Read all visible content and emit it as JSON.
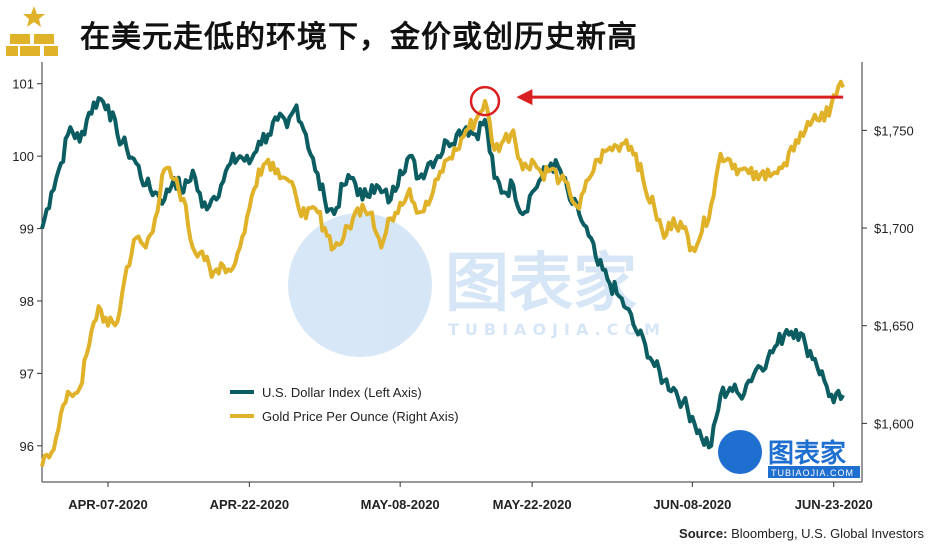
{
  "header": {
    "title": "在美元走低的环境下，金价或创历史新高"
  },
  "source": {
    "label": "Source:",
    "text": "Bloomberg, U.S. Global Investors"
  },
  "watermark": {
    "text": "图表家",
    "sub": "TUBIAOJIA.COM"
  },
  "colors": {
    "dxy": "#0c5d62",
    "gold": "#e0b22a",
    "arrow": "#d91f1f",
    "axis": "#333333"
  },
  "chart_data": {
    "type": "line",
    "title": "在美元走低的环境下，金价或创历史新高",
    "x": {
      "type": "date",
      "start": "2020-03-31",
      "end": "2020-06-26",
      "tick_labels": [
        "APR-07-2020",
        "APR-22-2020",
        "MAY-08-2020",
        "MAY-22-2020",
        "JUN-08-2020",
        "JUN-23-2020"
      ]
    },
    "y_left": {
      "range": [
        95.5,
        101.3
      ],
      "ticks": [
        96,
        97,
        98,
        99,
        100,
        101
      ],
      "tick_labels": [
        "96",
        "97",
        "98",
        "99",
        "100",
        "101"
      ]
    },
    "y_right": {
      "range": [
        1570,
        1785
      ],
      "ticks": [
        1600,
        1650,
        1700,
        1750
      ],
      "tick_labels": [
        "$1,600",
        "$1,650",
        "$1,700",
        "$1,750"
      ]
    },
    "grid": false,
    "legend_position": "bottom-left",
    "series": [
      {
        "name": "U.S. Dollar Index (Left Axis)",
        "axis": "left",
        "color": "#0c5d62",
        "points": [
          [
            "2020-03-31",
            99.0
          ],
          [
            "2020-04-01",
            99.5
          ],
          [
            "2020-04-02",
            99.9
          ],
          [
            "2020-04-03",
            100.4
          ],
          [
            "2020-04-04",
            100.2
          ],
          [
            "2020-04-05",
            100.6
          ],
          [
            "2020-04-06",
            100.8
          ],
          [
            "2020-04-07",
            100.7
          ],
          [
            "2020-04-08",
            100.3
          ],
          [
            "2020-04-09",
            100.1
          ],
          [
            "2020-04-10",
            99.9
          ],
          [
            "2020-04-11",
            99.6
          ],
          [
            "2020-04-12",
            99.5
          ],
          [
            "2020-04-13",
            99.4
          ],
          [
            "2020-04-14",
            99.7
          ],
          [
            "2020-04-15",
            99.5
          ],
          [
            "2020-04-16",
            99.8
          ],
          [
            "2020-04-17",
            99.3
          ],
          [
            "2020-04-18",
            99.4
          ],
          [
            "2020-04-19",
            99.6
          ],
          [
            "2020-04-20",
            99.9
          ],
          [
            "2020-04-21",
            100.0
          ],
          [
            "2020-04-22",
            99.9
          ],
          [
            "2020-04-23",
            100.2
          ],
          [
            "2020-04-24",
            100.3
          ],
          [
            "2020-04-25",
            100.5
          ],
          [
            "2020-04-26",
            100.4
          ],
          [
            "2020-04-27",
            100.7
          ],
          [
            "2020-04-28",
            100.3
          ],
          [
            "2020-04-29",
            99.8
          ],
          [
            "2020-04-30",
            99.4
          ],
          [
            "2020-05-01",
            99.2
          ],
          [
            "2020-05-02",
            99.6
          ],
          [
            "2020-05-03",
            99.7
          ],
          [
            "2020-05-04",
            99.4
          ],
          [
            "2020-05-05",
            99.6
          ],
          [
            "2020-05-06",
            99.5
          ],
          [
            "2020-05-07",
            99.4
          ],
          [
            "2020-05-08",
            99.8
          ],
          [
            "2020-05-09",
            100.0
          ],
          [
            "2020-05-10",
            99.7
          ],
          [
            "2020-05-11",
            99.9
          ],
          [
            "2020-05-12",
            100.0
          ],
          [
            "2020-05-13",
            100.2
          ],
          [
            "2020-05-14",
            100.3
          ],
          [
            "2020-05-15",
            100.4
          ],
          [
            "2020-05-16",
            100.3
          ],
          [
            "2020-05-17",
            100.5
          ],
          [
            "2020-05-18",
            99.7
          ],
          [
            "2020-05-19",
            99.5
          ],
          [
            "2020-05-20",
            99.6
          ],
          [
            "2020-05-21",
            99.2
          ],
          [
            "2020-05-22",
            99.5
          ],
          [
            "2020-05-23",
            99.7
          ],
          [
            "2020-05-24",
            99.9
          ],
          [
            "2020-05-25",
            99.8
          ],
          [
            "2020-05-26",
            99.4
          ],
          [
            "2020-05-27",
            99.2
          ],
          [
            "2020-05-28",
            98.9
          ],
          [
            "2020-05-29",
            98.5
          ],
          [
            "2020-05-30",
            98.3
          ],
          [
            "2020-05-31",
            98.1
          ],
          [
            "2020-06-01",
            97.9
          ],
          [
            "2020-06-02",
            97.6
          ],
          [
            "2020-06-03",
            97.4
          ],
          [
            "2020-06-04",
            97.1
          ],
          [
            "2020-06-05",
            96.9
          ],
          [
            "2020-06-06",
            96.8
          ],
          [
            "2020-06-07",
            96.6
          ],
          [
            "2020-06-08",
            96.4
          ],
          [
            "2020-06-09",
            96.1
          ],
          [
            "2020-06-10",
            96.0
          ],
          [
            "2020-06-11",
            96.7
          ],
          [
            "2020-06-12",
            96.8
          ],
          [
            "2020-06-13",
            96.7
          ],
          [
            "2020-06-14",
            96.9
          ],
          [
            "2020-06-15",
            97.1
          ],
          [
            "2020-06-16",
            97.2
          ],
          [
            "2020-06-17",
            97.4
          ],
          [
            "2020-06-18",
            97.6
          ],
          [
            "2020-06-19",
            97.6
          ],
          [
            "2020-06-20",
            97.4
          ],
          [
            "2020-06-21",
            97.2
          ],
          [
            "2020-06-22",
            96.9
          ],
          [
            "2020-06-23",
            96.6
          ],
          [
            "2020-06-24",
            96.7
          ]
        ]
      },
      {
        "name": "Gold Price Per Ounce (Right Axis)",
        "axis": "right",
        "color": "#e0b22a",
        "points": [
          [
            "2020-03-31",
            1578
          ],
          [
            "2020-04-01",
            1585
          ],
          [
            "2020-04-02",
            1605
          ],
          [
            "2020-04-03",
            1615
          ],
          [
            "2020-04-04",
            1618
          ],
          [
            "2020-04-05",
            1640
          ],
          [
            "2020-04-06",
            1660
          ],
          [
            "2020-04-07",
            1650
          ],
          [
            "2020-04-08",
            1652
          ],
          [
            "2020-04-09",
            1680
          ],
          [
            "2020-04-10",
            1695
          ],
          [
            "2020-04-11",
            1690
          ],
          [
            "2020-04-12",
            1705
          ],
          [
            "2020-04-13",
            1730
          ],
          [
            "2020-04-14",
            1725
          ],
          [
            "2020-04-15",
            1715
          ],
          [
            "2020-04-16",
            1690
          ],
          [
            "2020-04-17",
            1688
          ],
          [
            "2020-04-18",
            1675
          ],
          [
            "2020-04-19",
            1682
          ],
          [
            "2020-04-20",
            1678
          ],
          [
            "2020-04-21",
            1690
          ],
          [
            "2020-04-22",
            1710
          ],
          [
            "2020-04-23",
            1730
          ],
          [
            "2020-04-24",
            1735
          ],
          [
            "2020-04-25",
            1730
          ],
          [
            "2020-04-26",
            1725
          ],
          [
            "2020-04-27",
            1715
          ],
          [
            "2020-04-28",
            1705
          ],
          [
            "2020-04-29",
            1710
          ],
          [
            "2020-04-30",
            1700
          ],
          [
            "2020-05-01",
            1690
          ],
          [
            "2020-05-02",
            1695
          ],
          [
            "2020-05-03",
            1705
          ],
          [
            "2020-05-04",
            1712
          ],
          [
            "2020-05-05",
            1708
          ],
          [
            "2020-05-06",
            1690
          ],
          [
            "2020-05-07",
            1705
          ],
          [
            "2020-05-08",
            1713
          ],
          [
            "2020-05-09",
            1720
          ],
          [
            "2020-05-10",
            1708
          ],
          [
            "2020-05-11",
            1712
          ],
          [
            "2020-05-12",
            1725
          ],
          [
            "2020-05-13",
            1735
          ],
          [
            "2020-05-14",
            1740
          ],
          [
            "2020-05-15",
            1750
          ],
          [
            "2020-05-16",
            1755
          ],
          [
            "2020-05-17",
            1765
          ],
          [
            "2020-05-18",
            1740
          ],
          [
            "2020-05-19",
            1745
          ],
          [
            "2020-05-20",
            1750
          ],
          [
            "2020-05-21",
            1730
          ],
          [
            "2020-05-22",
            1735
          ],
          [
            "2020-05-23",
            1728
          ],
          [
            "2020-05-24",
            1730
          ],
          [
            "2020-05-25",
            1725
          ],
          [
            "2020-05-26",
            1718
          ],
          [
            "2020-05-27",
            1710
          ],
          [
            "2020-05-28",
            1725
          ],
          [
            "2020-05-29",
            1735
          ],
          [
            "2020-05-30",
            1740
          ],
          [
            "2020-05-31",
            1742
          ],
          [
            "2020-06-01",
            1745
          ],
          [
            "2020-06-02",
            1738
          ],
          [
            "2020-06-03",
            1720
          ],
          [
            "2020-06-04",
            1710
          ],
          [
            "2020-06-05",
            1695
          ],
          [
            "2020-06-06",
            1705
          ],
          [
            "2020-06-07",
            1700
          ],
          [
            "2020-06-08",
            1690
          ],
          [
            "2020-06-09",
            1698
          ],
          [
            "2020-06-10",
            1712
          ],
          [
            "2020-06-11",
            1738
          ],
          [
            "2020-06-12",
            1735
          ],
          [
            "2020-06-13",
            1730
          ],
          [
            "2020-06-14",
            1728
          ],
          [
            "2020-06-15",
            1725
          ],
          [
            "2020-06-16",
            1730
          ],
          [
            "2020-06-17",
            1728
          ],
          [
            "2020-06-18",
            1732
          ],
          [
            "2020-06-19",
            1745
          ],
          [
            "2020-06-20",
            1750
          ],
          [
            "2020-06-21",
            1758
          ],
          [
            "2020-06-22",
            1755
          ],
          [
            "2020-06-23",
            1768
          ],
          [
            "2020-06-24",
            1772
          ]
        ]
      }
    ],
    "annotations": [
      {
        "type": "circle",
        "x": "2020-05-17",
        "axis": "right",
        "y": 1765
      },
      {
        "type": "arrow",
        "from_x": "2020-06-24",
        "to_x": "2020-05-18",
        "axis": "right",
        "y": 1767
      }
    ]
  }
}
